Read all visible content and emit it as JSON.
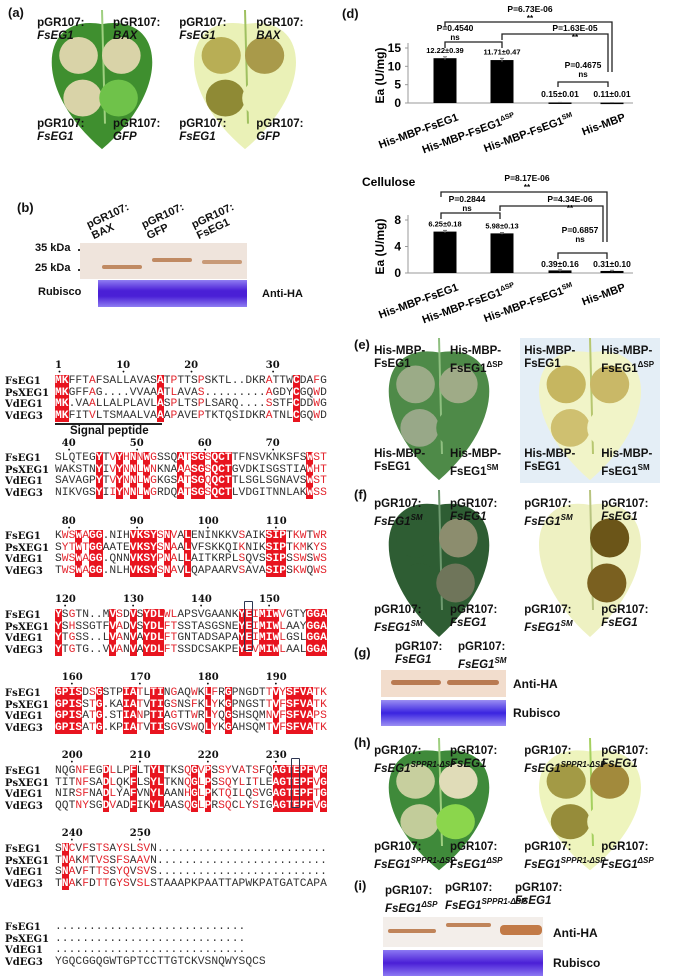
{
  "panel_labels": {
    "a": "(a)",
    "b": "(b)",
    "d": "(d)",
    "e": "(e)",
    "f": "(f)",
    "g": "(g)",
    "h": "(h)",
    "i": "(i)"
  },
  "colors": {
    "leaf_green": "#3f8f2f",
    "leaf_dark": "#2e5d33",
    "cleared_leaf": "#eaf1b7",
    "lesion_tan": "#d9d3a8",
    "lesion_brown": "#8a7a2a",
    "blot_bg": "#f0ddd0",
    "band": "#b06a3c",
    "rubisco": "#4a1fd6",
    "identical": "#e8141f",
    "similar": "#e3262e"
  },
  "panel_a": {
    "leaves": [
      {
        "labels": [
          {
            "l1": "pGR107:",
            "l2": "FsEG1",
            "sup": ""
          },
          {
            "l1": "pGR107:",
            "l2": "BAX",
            "sup": ""
          },
          {
            "l1": "pGR107:",
            "l2": "FsEG1",
            "sup": ""
          },
          {
            "l1": "pGR107:",
            "l2": "GFP",
            "sup": ""
          }
        ]
      },
      {
        "labels": [
          {
            "l1": "pGR107:",
            "l2": "FsEG1",
            "sup": ""
          },
          {
            "l1": "pGR107:",
            "l2": "BAX",
            "sup": ""
          },
          {
            "l1": "pGR107:",
            "l2": "FsEG1",
            "sup": ""
          },
          {
            "l1": "pGR107:",
            "l2": "GFP",
            "sup": ""
          }
        ]
      }
    ]
  },
  "panel_b": {
    "lanes": [
      {
        "l1": "pGR107:",
        "l2": "BAX"
      },
      {
        "l1": "pGR107:",
        "l2": "GFP"
      },
      {
        "l1": "pGR107:",
        "l2": "FsEG1"
      }
    ],
    "markers": [
      "35 kDa",
      "25 kDa"
    ],
    "rubisco": "Rubisco",
    "antibody": "Anti-HA"
  },
  "alignment": {
    "names": [
      "FsEG1",
      "PsXEG1",
      "VdEG1",
      "VdEG3"
    ],
    "signal_peptide": "Signal peptide",
    "blocks": [
      {
        "numbers": [
          "1",
          "10",
          "20",
          "30"
        ],
        "rows": [
          "MKFFTAFSALLAVASATPTTSPSKTL..DKRATTWCDAFG",
          "MKGFFAG....VVAAATLAVAS.........AGDYCGQWD",
          "MK.VAALLALPLAVLASPLTSPLSARQ....SSTFCDDWG",
          "MKFITVLTSMAALVAAAPAVEPTKTQSIDKRATNLCGQWD"
        ]
      },
      {
        "numbers": [
          "40",
          "50",
          "60",
          "70"
        ],
        "rows": [
          "SLQTEGYTVYHNNWGSSQATSGSQCTTFNSVKNKSFSWST",
          "WAKSTNYIVYNNLWNKNAAASGSQCTGVDKISGSTIAWHT",
          "SAVAGPYTVYNNLWGKGSATSGQQCTTLSGLSGNAVSWST",
          "NIKVGSYIIYNNLWGRDQATSGSQCTLVDGITNNLAKWSS"
        ]
      },
      {
        "numbers": [
          "80",
          "90",
          "100",
          "110"
        ],
        "rows": [
          "KWSWAGG.NIHVKSYSNVALENINKKVSAIKSIPTKWTWR",
          "SYTWTGGAATEVKSYSNAALVFSKKQIKNIKSIPTKMKYS",
          "SWSWAGG.QNNVKSYPNALLAITKRPLSQVSSIPSSWSWS",
          "TWSWAGG.NLHVKSYSNAVLQAPAARVSAVASIPSKWQWS"
        ]
      },
      {
        "numbers": [
          "120",
          "130",
          "140",
          "150"
        ],
        "rows": [
          "YSGTN..MVSDVSYDLWLAPSVGAANKYEIMIWVGTYGGA",
          "YSHSSGTFVADVSYDLFTSSTASGSNEYEIMIWLAAYGGA",
          "YTGSS..LVANVAYDLFTGNTADSAPAYEIMIWLGSLGGA",
          "YTGTG..VVANVAYDLFTSSDCSAKPEYEVMIWLAALGGA"
        ]
      },
      {
        "numbers": [
          "160",
          "170",
          "180",
          "190"
        ],
        "rows": [
          "GPISDSGSTPIATLTINGAQWKLFRGPNGDTTVYSFVATK",
          "GPISSTG.KAIATVTIGSNSFKLYKGPNGSTTVFSFVATK",
          "GPISATG.STIANPTIAGTTWRLYQGSHSQMNVFSFVAPS",
          "GPISATG.KPIATVTISGVSWQLYKGAHSQMTVFSFVATK"
        ]
      },
      {
        "numbers": [
          "200",
          "210",
          "220",
          "230"
        ],
        "rows": [
          "NQGNFEGDLLPFLTYLTKSQGVPSSYVATSFQAGTEPFVG",
          "TITNFSADLQKFLSYLTKNQGLPSSQYLITLEAGTEPFVG",
          "NIRSFNADLYAFVNYLAANHGLPKTQILQSVGAGTEPFTG",
          "QQTNYSGDVADFIKYLAASQGLPRSQCLYSIGAGTEPFVG"
        ]
      },
      {
        "numbers": [
          "240",
          "250"
        ],
        "rows": [
          "SNCVFSTSAYSLSVN.........................",
          "TNAKMTVSSFSAAVN.........................",
          "SNAVFTTSSYQVSVS.........................",
          "TNAKFDTTGYSVSLSTAAAPKPAATTAPWKPATGATCAPA"
        ]
      },
      {
        "numbers": [],
        "rows": [
          "............................",
          "............................",
          "............................",
          "YGQCGGQGWTGPTCCTTGTCKVSNQWYSQCS"
        ]
      }
    ]
  },
  "chart_data": [
    {
      "type": "bar",
      "title": "",
      "xlabel": "",
      "ylabel": "Ea (U/mg)",
      "ylim": [
        0,
        15
      ],
      "yticks": [
        0,
        5,
        10,
        15
      ],
      "categories": [
        {
          "base": "His-MBP-FsEG1",
          "sup": ""
        },
        {
          "base": "His-MBP-FsEG1",
          "sup": "ΔSP"
        },
        {
          "base": "His-MBP-FsEG1",
          "sup": "SM"
        },
        {
          "base": "His-MBP",
          "sup": ""
        }
      ],
      "values": [
        12.22,
        11.71,
        0.15,
        0.11
      ],
      "errors": [
        0.39,
        0.47,
        0.01,
        0.01
      ],
      "value_labels": [
        "12.22±0.39",
        "11.71±0.47",
        "0.15±0.01",
        "0.11±0.01"
      ],
      "comparisons": [
        {
          "p": "P=6.73E-06",
          "sig": "**",
          "pair": [
            1,
            4
          ]
        },
        {
          "p": "P=0.4540",
          "sig": "ns",
          "pair": [
            1,
            2
          ]
        },
        {
          "p": "P=1.63E-05",
          "sig": "**",
          "pair": [
            2,
            4
          ]
        },
        {
          "p": "P=0.4675",
          "sig": "ns",
          "pair": [
            3,
            4
          ]
        }
      ]
    },
    {
      "type": "bar",
      "title": "Cellulose",
      "xlabel": "",
      "ylabel": "Ea (U/mg)",
      "ylim": [
        0,
        8
      ],
      "yticks": [
        0,
        4,
        8
      ],
      "categories": [
        {
          "base": "His-MBP-FsEG1",
          "sup": ""
        },
        {
          "base": "His-MBP-FsEG1",
          "sup": "ΔSP"
        },
        {
          "base": "His-MBP-FsEG1",
          "sup": "SM"
        },
        {
          "base": "His-MBP",
          "sup": ""
        }
      ],
      "values": [
        6.25,
        5.98,
        0.39,
        0.31
      ],
      "errors": [
        0.18,
        0.13,
        0.16,
        0.1
      ],
      "value_labels": [
        "6.25±0.18",
        "5.98±0.13",
        "0.39±0.16",
        "0.31±0.10"
      ],
      "comparisons": [
        {
          "p": "P=8.17E-06",
          "sig": "**",
          "pair": [
            1,
            4
          ]
        },
        {
          "p": "P=0.2844",
          "sig": "ns",
          "pair": [
            1,
            2
          ]
        },
        {
          "p": "P=4.34E-06",
          "sig": "**",
          "pair": [
            2,
            4
          ]
        },
        {
          "p": "P=0.6857",
          "sig": "ns",
          "pair": [
            3,
            4
          ]
        }
      ]
    }
  ],
  "panel_e": {
    "labels": [
      {
        "l1": "His-MBP-",
        "l2": "FsEG1",
        "sup": ""
      },
      {
        "l1": "His-MBP-",
        "l2": "FsEG1",
        "sup": "ΔSP"
      },
      {
        "l1": "His-MBP-",
        "l2": "FsEG1",
        "sup": ""
      },
      {
        "l1": "His-MBP-",
        "l2": "FsEG1",
        "sup": "SM"
      }
    ]
  },
  "panel_f": {
    "labels": [
      {
        "l1": "pGR107:",
        "l2": "FsEG1",
        "sup": "SM"
      },
      {
        "l1": "pGR107:",
        "l2": "FsEG1",
        "sup": ""
      },
      {
        "l1": "pGR107:",
        "l2": "FsEG1",
        "sup": "SM"
      },
      {
        "l1": "pGR107:",
        "l2": "FsEG1",
        "sup": ""
      }
    ]
  },
  "panel_g": {
    "lanes": [
      {
        "l1": "pGR107:",
        "l2": "FsEG1",
        "sup": ""
      },
      {
        "l1": "pGR107:",
        "l2": "FsEG1",
        "sup": "SM"
      }
    ],
    "antibody": "Anti-HA",
    "rubisco": "Rubisco"
  },
  "panel_h": {
    "labels": [
      {
        "l1": "pGR107:",
        "l2": "FsEG1",
        "sup": "SPPR1-ΔSP"
      },
      {
        "l1": "pGR107:",
        "l2": "FsEG1",
        "sup": ""
      },
      {
        "l1": "pGR107:",
        "l2": "FsEG1",
        "sup": "SPPR1-ΔSP"
      },
      {
        "l1": "pGR107:",
        "l2": "FsEG1",
        "sup": "ΔSP"
      }
    ]
  },
  "panel_i": {
    "lanes": [
      {
        "l1": "pGR107:",
        "l2": "FsEG1",
        "sup": "ΔSP"
      },
      {
        "l1": "pGR107:",
        "l2": "FsEG1",
        "sup": "SPPR1-ΔSP"
      },
      {
        "l1": "pGR107:",
        "l2": "FsEG1",
        "sup": ""
      }
    ],
    "antibody": "Anti-HA",
    "rubisco": "Rubisco"
  }
}
